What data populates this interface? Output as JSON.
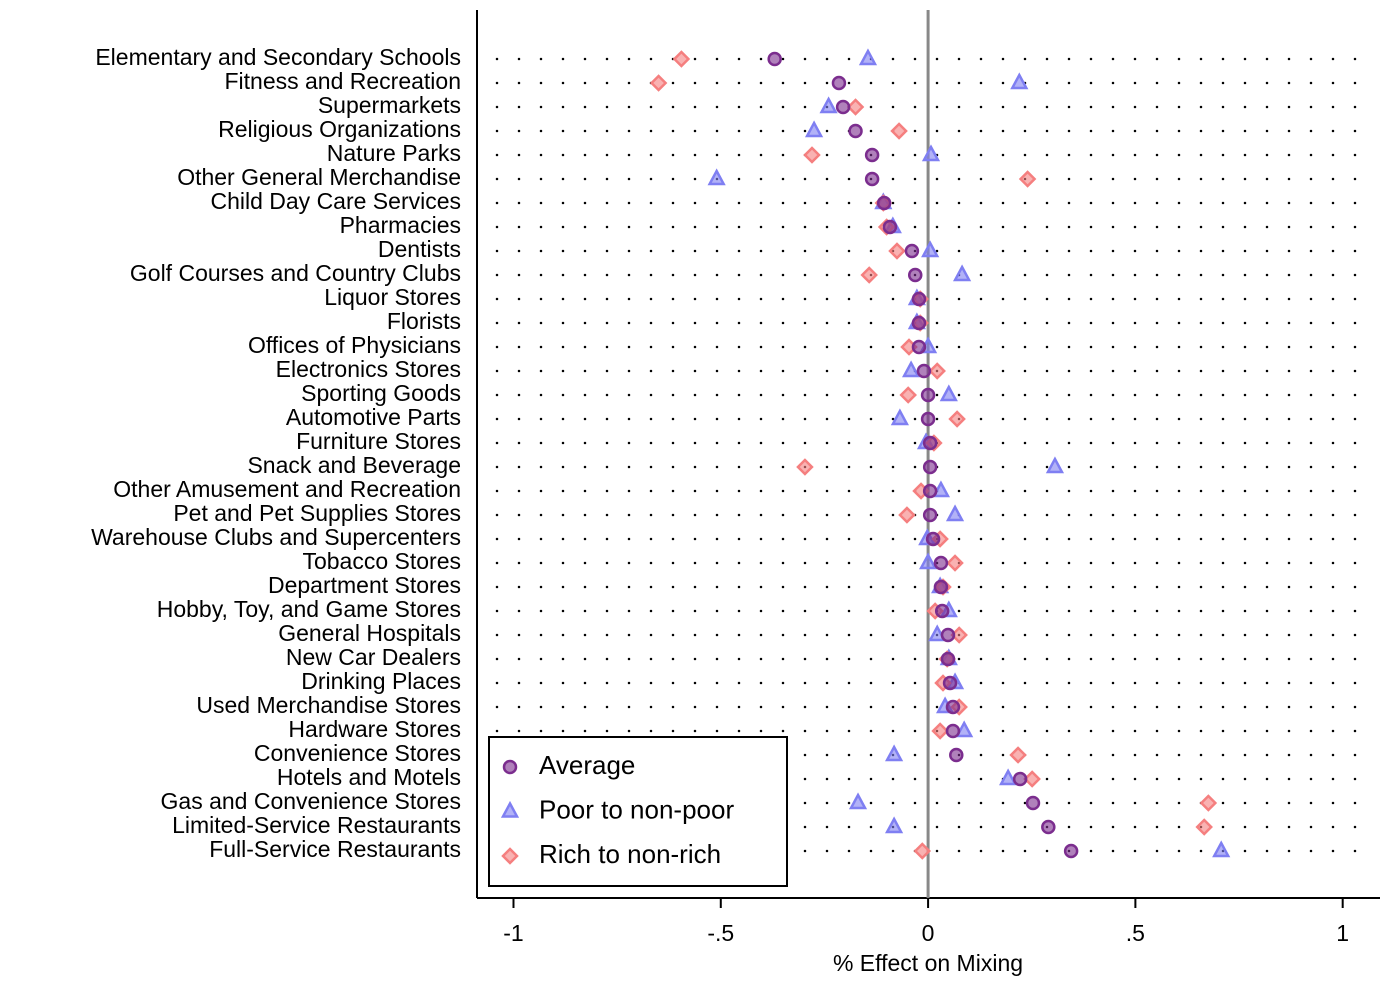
{
  "chart_data": {
    "type": "dot",
    "xlabel": "% Effect on Mixing",
    "categories": [
      "Elementary and Secondary Schools",
      "Fitness and Recreation",
      "Supermarkets",
      "Religious Organizations",
      "Nature Parks",
      "Other General Merchandise",
      "Child Day Care Services",
      "Pharmacies",
      "Dentists",
      "Golf Courses and Country Clubs",
      "Liquor Stores",
      "Florists",
      "Offices of Physicians",
      "Electronics Stores",
      "Sporting Goods",
      "Automotive Parts",
      "Furniture Stores",
      "Snack and Beverage",
      "Other Amusement and Recreation",
      "Pet and Pet Supplies Stores",
      "Warehouse Clubs and Supercenters",
      "Tobacco Stores",
      "Department Stores",
      "Hobby, Toy, and Game Stores",
      "General Hospitals",
      "New Car Dealers",
      "Drinking Places",
      "Used Merchandise Stores",
      "Hardware Stores",
      "Convenience Stores",
      "Hotels and Motels",
      "Gas and Convenience Stores",
      "Limited-Service Restaurants",
      "Full-Service Restaurants"
    ],
    "series": [
      {
        "name": "Average",
        "color": "#7b2d8e",
        "marker": "circle",
        "values": [
          -0.37,
          -0.215,
          -0.205,
          -0.175,
          -0.135,
          -0.135,
          -0.106,
          -0.092,
          -0.039,
          -0.031,
          -0.022,
          -0.022,
          -0.022,
          -0.01,
          0,
          0,
          0.005,
          0.005,
          0.005,
          0.005,
          0.012,
          0.031,
          0.031,
          0.034,
          0.048,
          0.048,
          0.053,
          0.06,
          0.06,
          0.068,
          0.222,
          0.253,
          0.29,
          0.345
        ]
      },
      {
        "name": "Poor to non-poor",
        "color": "#7f7ff2",
        "marker": "triangle",
        "values": [
          -0.145,
          0.22,
          -0.24,
          -0.275,
          0.007,
          -0.51,
          -0.108,
          -0.085,
          0.005,
          0.082,
          -0.027,
          -0.027,
          0,
          -0.041,
          0.05,
          -0.068,
          -0.005,
          0.306,
          0.031,
          0.065,
          -0.002,
          0,
          0.029,
          0.05,
          0.022,
          0.05,
          0.065,
          0.041,
          0.087,
          -0.082,
          0.193,
          -0.169,
          -0.082,
          0.707
        ]
      },
      {
        "name": "Rich to non-rich",
        "color": "#f57f7f",
        "marker": "diamond",
        "values": [
          -0.595,
          -0.65,
          -0.175,
          -0.07,
          -0.28,
          0.24,
          -0.108,
          -0.1,
          -0.075,
          -0.142,
          -0.019,
          -0.019,
          -0.046,
          0.022,
          -0.048,
          0.07,
          0.014,
          -0.297,
          -0.017,
          -0.051,
          0.029,
          0.065,
          0.036,
          0.017,
          0.075,
          0.046,
          0.036,
          0.075,
          0.029,
          0.217,
          0.251,
          0.676,
          0.666,
          -0.014
        ]
      }
    ],
    "xlim": [
      -1.088,
      1.09
    ],
    "xticks": [
      -1,
      {
        "value": -0.5,
        "label": "-.5"
      },
      0,
      {
        "value": 0.5,
        "label": ".5"
      },
      1
    ],
    "reference_line": 0,
    "grid": true,
    "legend": "lower left"
  }
}
